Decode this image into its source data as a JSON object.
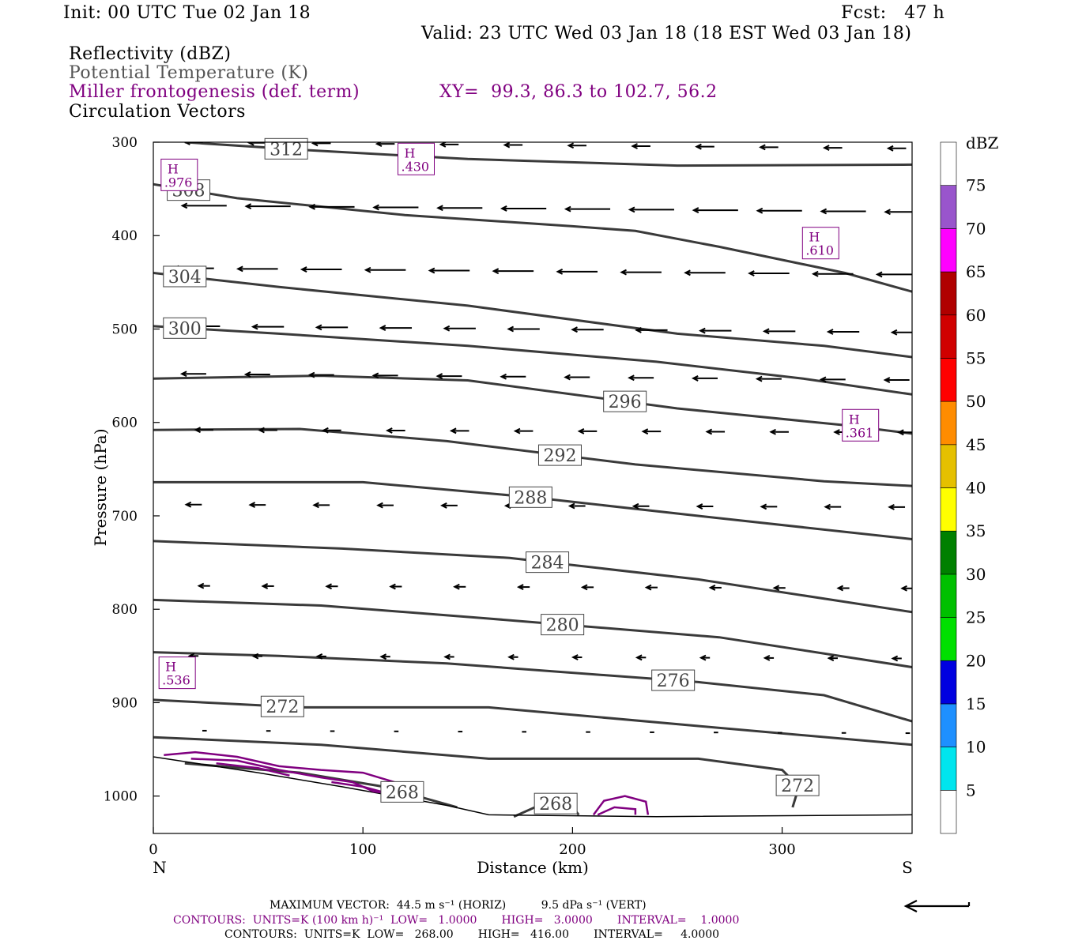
{
  "header": {
    "init": "Init: 00 UTC Tue 02 Jan 18",
    "fcst": "Fcst:   47 h",
    "valid": "Valid: 23 UTC Wed 03 Jan 18 (18 EST Wed 03 Jan 18)",
    "field1": "Reflectivity (dBZ)",
    "field2": "Potential Temperature (K)",
    "field3": "Miller frontogenesis (def. term)",
    "xy": "XY=  99.3, 86.3 to 102.7, 56.2",
    "field4": "Circulation Vectors"
  },
  "colors": {
    "theta": "#3a3a3a",
    "fronto": "#800080",
    "vectors": "#000000",
    "gray_label": "#555555"
  },
  "chart_data": {
    "type": "contour",
    "xlabel": "Distance (km)",
    "ylabel": "Pressure (hPa)",
    "xlim": [
      0,
      362
    ],
    "ylim": [
      300,
      1040
    ],
    "y_scale": "linear-reversed",
    "x_ticks": [
      "0",
      "100",
      "200",
      "300"
    ],
    "y_ticks": [
      "300",
      "400",
      "500",
      "600",
      "700",
      "800",
      "900",
      "1000"
    ],
    "x_end_labels": {
      "left": "N",
      "right": "S"
    },
    "theta_contours": [
      {
        "label": "312",
        "points": [
          [
            15,
            300
          ],
          [
            70,
            308
          ],
          [
            150,
            318
          ],
          [
            250,
            325
          ],
          [
            362,
            324
          ]
        ]
      },
      {
        "label": "308",
        "points": [
          [
            0,
            345
          ],
          [
            40,
            360
          ],
          [
            120,
            378
          ],
          [
            200,
            390
          ],
          [
            230,
            395
          ],
          [
            270,
            412
          ],
          [
            330,
            440
          ],
          [
            362,
            460
          ]
        ]
      },
      {
        "label": "304",
        "points": [
          [
            0,
            440
          ],
          [
            60,
            455
          ],
          [
            150,
            475
          ],
          [
            250,
            505
          ],
          [
            320,
            518
          ],
          [
            362,
            530
          ]
        ]
      },
      {
        "label": "300",
        "points": [
          [
            0,
            497
          ],
          [
            60,
            505
          ],
          [
            150,
            518
          ],
          [
            240,
            535
          ],
          [
            310,
            553
          ],
          [
            362,
            570
          ]
        ]
      },
      {
        "label": "296",
        "points": [
          [
            0,
            553
          ],
          [
            80,
            550
          ],
          [
            150,
            555
          ],
          [
            250,
            585
          ],
          [
            330,
            603
          ],
          [
            362,
            612
          ]
        ]
      },
      {
        "label": "292",
        "points": [
          [
            0,
            608
          ],
          [
            70,
            607
          ],
          [
            140,
            620
          ],
          [
            230,
            645
          ],
          [
            320,
            663
          ],
          [
            362,
            668
          ]
        ]
      },
      {
        "label": "288",
        "points": [
          [
            0,
            664
          ],
          [
            100,
            664
          ],
          [
            180,
            680
          ],
          [
            260,
            700
          ],
          [
            362,
            725
          ]
        ]
      },
      {
        "label": "284",
        "points": [
          [
            0,
            727
          ],
          [
            90,
            735
          ],
          [
            170,
            745
          ],
          [
            260,
            768
          ],
          [
            362,
            803
          ]
        ]
      },
      {
        "label": "280",
        "points": [
          [
            0,
            790
          ],
          [
            80,
            796
          ],
          [
            160,
            810
          ],
          [
            270,
            830
          ],
          [
            362,
            862
          ]
        ]
      },
      {
        "label": "276",
        "points": [
          [
            0,
            846
          ],
          [
            60,
            850
          ],
          [
            140,
            858
          ],
          [
            260,
            878
          ],
          [
            320,
            892
          ],
          [
            362,
            920
          ]
        ]
      },
      {
        "label": "272",
        "points": [
          [
            0,
            897
          ],
          [
            70,
            905
          ],
          [
            160,
            905
          ],
          [
            260,
            925
          ],
          [
            362,
            945
          ]
        ]
      },
      {
        "label": "272",
        "points": [
          [
            0,
            937
          ],
          [
            80,
            945
          ],
          [
            160,
            960
          ],
          [
            260,
            960
          ],
          [
            300,
            972
          ],
          [
            308,
            990
          ],
          [
            305,
            1012
          ]
        ]
      },
      {
        "label": "268",
        "points": [
          [
            15,
            965
          ],
          [
            70,
            975
          ],
          [
            110,
            990
          ],
          [
            145,
            1012
          ]
        ]
      },
      {
        "label": "268",
        "points": [
          [
            172,
            1022
          ],
          [
            182,
            1012
          ],
          [
            192,
            1008
          ],
          [
            200,
            1012
          ],
          [
            203,
            1020
          ]
        ]
      }
    ],
    "fronto_maxima": [
      {
        "label": "H",
        "value": ".976",
        "x": 12,
        "p": 335
      },
      {
        "label": "H",
        "value": ".430",
        "x": 125,
        "p": 318
      },
      {
        "label": "H",
        "value": ".610",
        "x": 318,
        "p": 408
      },
      {
        "label": "H",
        "value": ".361",
        "x": 337,
        "p": 603
      },
      {
        "label": "H",
        "value": ".536",
        "x": 11,
        "p": 868
      }
    ],
    "terrain": [
      [
        0,
        958
      ],
      [
        50,
        975
      ],
      [
        90,
        990
      ],
      [
        140,
        1010
      ],
      [
        160,
        1020
      ],
      [
        240,
        1022
      ],
      [
        362,
        1020
      ]
    ],
    "vector_rows": [
      {
        "p": 300,
        "length": 8
      },
      {
        "p": 368,
        "length": 20
      },
      {
        "p": 435,
        "length": 18
      },
      {
        "p": 497,
        "length": 14
      },
      {
        "p": 548,
        "length": 11
      },
      {
        "p": 608,
        "length": 8
      },
      {
        "p": 688,
        "length": 7
      },
      {
        "p": 775,
        "length": 5
      },
      {
        "p": 850,
        "length": 4
      },
      {
        "p": 930,
        "length": 2
      }
    ],
    "colorbar": {
      "unit": "dBZ",
      "levels": [
        "5",
        "10",
        "15",
        "20",
        "25",
        "30",
        "35",
        "40",
        "45",
        "50",
        "55",
        "60",
        "65",
        "70",
        "75"
      ],
      "colors": [
        "#ffffff",
        "#00e5ee",
        "#1e90ff",
        "#0000e0",
        "#00e000",
        "#00c000",
        "#008000",
        "#ffff00",
        "#e5c000",
        "#ff8c00",
        "#ff0000",
        "#d00000",
        "#b00000",
        "#ff00ff",
        "#9955cc",
        "#ffffff"
      ]
    }
  },
  "footer": {
    "max_vector": "MAXIMUM VECTOR:  44.5 m s⁻¹ (HORIZ)          9.5 dPa s⁻¹ (VERT)",
    "contours1": "CONTOURS:  UNITS=K (100 km h)⁻¹  LOW=   1.0000       HIGH=   3.0000       INTERVAL=    1.0000",
    "contours2": "CONTOURS:  UNITS=K  LOW=   268.00       HIGH=   416.00       INTERVAL=     4.0000"
  }
}
